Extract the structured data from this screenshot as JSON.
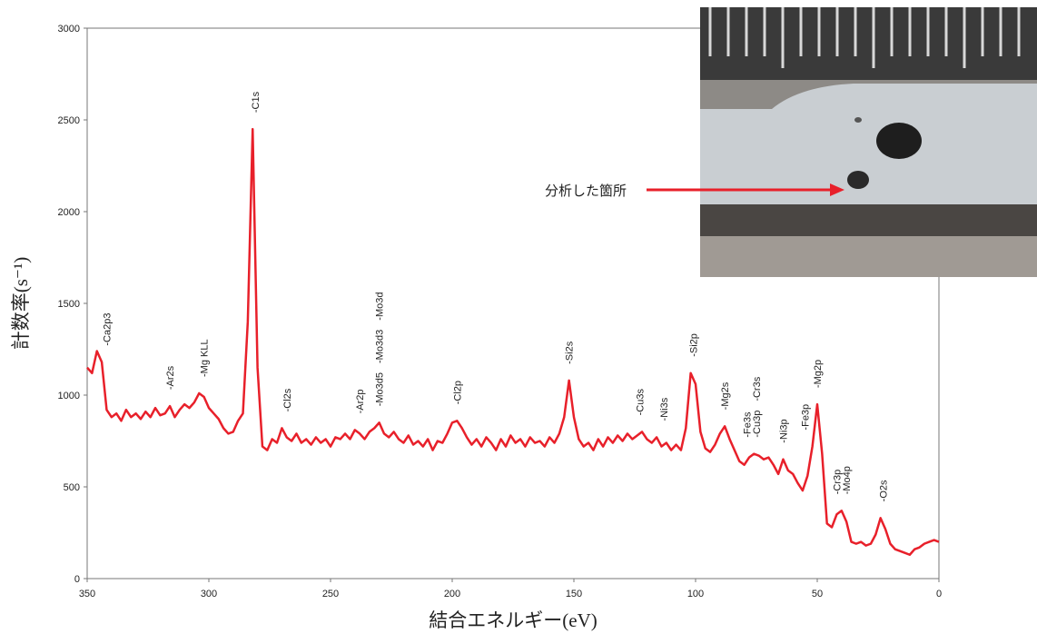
{
  "chart_data": {
    "type": "line",
    "x_label": "結合エネルギー(eV)",
    "y_label": "計数率(s⁻¹)",
    "x": [
      350,
      348,
      346,
      344,
      342,
      340,
      338,
      336,
      334,
      332,
      330,
      328,
      326,
      324,
      322,
      320,
      318,
      316,
      314,
      312,
      310,
      308,
      306,
      304,
      302,
      300,
      298,
      296,
      294,
      292,
      290,
      288,
      286,
      284,
      282,
      280,
      278,
      276,
      274,
      272,
      270,
      268,
      266,
      264,
      262,
      260,
      258,
      256,
      254,
      252,
      250,
      248,
      246,
      244,
      242,
      240,
      238,
      236,
      234,
      232,
      230,
      228,
      226,
      224,
      222,
      220,
      218,
      216,
      214,
      212,
      210,
      208,
      206,
      204,
      202,
      200,
      198,
      196,
      194,
      192,
      190,
      188,
      186,
      184,
      182,
      180,
      178,
      176,
      174,
      172,
      170,
      168,
      166,
      164,
      162,
      160,
      158,
      156,
      154,
      152,
      150,
      148,
      146,
      144,
      142,
      140,
      138,
      136,
      134,
      132,
      130,
      128,
      126,
      124,
      122,
      120,
      118,
      116,
      114,
      112,
      110,
      108,
      106,
      104,
      102,
      100,
      98,
      96,
      94,
      92,
      90,
      88,
      86,
      84,
      82,
      80,
      78,
      76,
      74,
      72,
      70,
      68,
      66,
      64,
      62,
      60,
      58,
      56,
      54,
      52,
      50,
      48,
      46,
      44,
      42,
      40,
      38,
      36,
      34,
      32,
      30,
      28,
      26,
      24,
      22,
      20,
      18,
      16,
      14,
      12,
      10,
      8,
      6,
      4,
      2,
      0
    ],
    "values": [
      1150,
      1120,
      1240,
      1180,
      920,
      880,
      900,
      860,
      920,
      880,
      900,
      870,
      910,
      880,
      930,
      890,
      900,
      940,
      880,
      920,
      950,
      930,
      960,
      1010,
      990,
      930,
      900,
      870,
      820,
      790,
      800,
      860,
      900,
      1400,
      2450,
      1150,
      720,
      700,
      760,
      740,
      820,
      770,
      750,
      790,
      740,
      760,
      730,
      770,
      740,
      760,
      720,
      770,
      760,
      790,
      760,
      810,
      790,
      760,
      800,
      820,
      850,
      790,
      770,
      800,
      760,
      740,
      780,
      730,
      750,
      720,
      760,
      700,
      750,
      740,
      790,
      850,
      860,
      820,
      770,
      730,
      760,
      720,
      770,
      740,
      700,
      760,
      720,
      780,
      740,
      760,
      720,
      770,
      740,
      750,
      720,
      770,
      740,
      790,
      880,
      1080,
      880,
      760,
      720,
      740,
      700,
      760,
      720,
      770,
      740,
      780,
      750,
      790,
      760,
      780,
      800,
      760,
      740,
      770,
      720,
      740,
      700,
      730,
      700,
      820,
      1120,
      1060,
      800,
      710,
      690,
      730,
      790,
      830,
      760,
      700,
      640,
      620,
      660,
      680,
      670,
      650,
      660,
      620,
      570,
      650,
      590,
      570,
      520,
      480,
      560,
      720,
      950,
      680,
      300,
      280,
      350,
      370,
      310,
      200,
      190,
      200,
      180,
      190,
      240,
      330,
      270,
      190,
      160,
      150,
      140,
      130,
      160,
      170,
      190,
      200,
      210,
      200
    ],
    "color": "#e8202a",
    "xlim": [
      350,
      0
    ],
    "xticks": [
      350,
      300,
      250,
      200,
      150,
      100,
      50,
      0
    ],
    "ylim": [
      0,
      3000
    ],
    "yticks": [
      0,
      500,
      1000,
      1500,
      2000,
      2500,
      3000
    ],
    "annotations": [
      {
        "x": 342,
        "text": "-Ca2p3"
      },
      {
        "x": 316,
        "text": "-Ar2s"
      },
      {
        "x": 302,
        "text": "-Mg KLL"
      },
      {
        "x": 281,
        "text": "-C1s"
      },
      {
        "x": 268,
        "text": "-Cl2s"
      },
      {
        "x": 238,
        "text": "-Ar2p"
      },
      {
        "x": 230,
        "text": "-Mo3d5"
      },
      {
        "x": 230,
        "text": "-Mo3d3"
      },
      {
        "x": 230,
        "text": "-Mo3d"
      },
      {
        "x": 198,
        "text": "-Cl2p"
      },
      {
        "x": 152,
        "text": "-Si2s"
      },
      {
        "x": 123,
        "text": "-Cu3s"
      },
      {
        "x": 113,
        "text": "-Ni3s"
      },
      {
        "x": 101,
        "text": "-Si2p"
      },
      {
        "x": 88,
        "text": "-Mg2s"
      },
      {
        "x": 79,
        "text": "-Fe3s"
      },
      {
        "x": 75,
        "text": "-Cu3p"
      },
      {
        "x": 75,
        "text": "-Cr3s"
      },
      {
        "x": 64,
        "text": "-Ni3p"
      },
      {
        "x": 55,
        "text": "-Fe3p"
      },
      {
        "x": 50,
        "text": "-Mg2p"
      },
      {
        "x": 42,
        "text": "-Cr3p"
      },
      {
        "x": 38,
        "text": "-Mo4p"
      },
      {
        "x": 23,
        "text": "-O2s"
      }
    ]
  },
  "inset_photo": {
    "label": "分析した箇所"
  }
}
